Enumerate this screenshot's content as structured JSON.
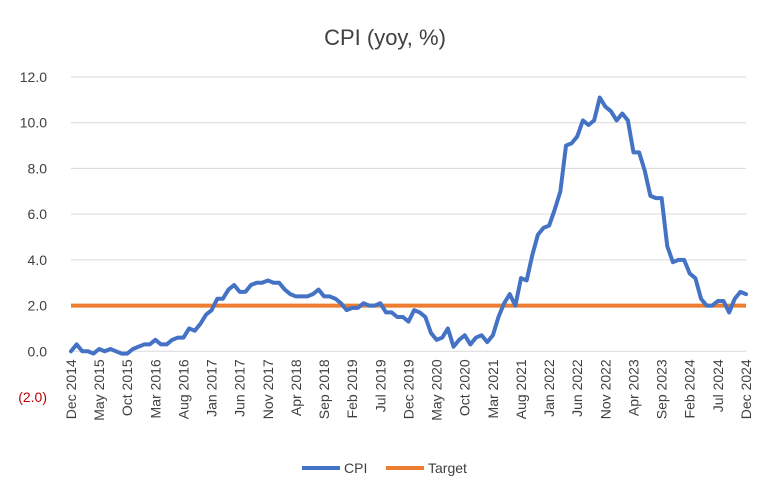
{
  "chart_data": {
    "type": "line",
    "title": "CPI (yoy, %)",
    "xlabel": "",
    "ylabel": "",
    "ylim": [
      -2,
      12
    ],
    "y_ticks": [
      {
        "value": 12,
        "label": "12.0"
      },
      {
        "value": 10,
        "label": "10.0"
      },
      {
        "value": 8,
        "label": "8.0"
      },
      {
        "value": 6,
        "label": "6.0"
      },
      {
        "value": 4,
        "label": "4.0"
      },
      {
        "value": 2,
        "label": "2.0"
      },
      {
        "value": 0,
        "label": "0.0"
      },
      {
        "value": -2,
        "label": "(2.0)"
      }
    ],
    "negative_label_color": "#c00000",
    "grid": true,
    "legend_position": "bottom",
    "x_tick_labels": [
      {
        "index": 0,
        "label": "Dec 2014"
      },
      {
        "index": 5,
        "label": "May 2015"
      },
      {
        "index": 10,
        "label": "Oct 2015"
      },
      {
        "index": 15,
        "label": "Mar 2016"
      },
      {
        "index": 20,
        "label": "Aug 2016"
      },
      {
        "index": 25,
        "label": "Jan 2017"
      },
      {
        "index": 30,
        "label": "Jun 2017"
      },
      {
        "index": 35,
        "label": "Nov 2017"
      },
      {
        "index": 40,
        "label": "Apr 2018"
      },
      {
        "index": 45,
        "label": "Sep 2018"
      },
      {
        "index": 50,
        "label": "Feb 2019"
      },
      {
        "index": 55,
        "label": "Jul 2019"
      },
      {
        "index": 60,
        "label": "Dec 2019"
      },
      {
        "index": 65,
        "label": "May 2020"
      },
      {
        "index": 70,
        "label": "Oct 2020"
      },
      {
        "index": 75,
        "label": "Mar 2021"
      },
      {
        "index": 80,
        "label": "Aug 2021"
      },
      {
        "index": 85,
        "label": "Jan 2022"
      },
      {
        "index": 90,
        "label": "Jun 2022"
      },
      {
        "index": 95,
        "label": "Nov 2022"
      },
      {
        "index": 100,
        "label": "Apr 2023"
      },
      {
        "index": 105,
        "label": "Sep 2023"
      },
      {
        "index": 110,
        "label": "Feb 2024"
      },
      {
        "index": 115,
        "label": "Jul 2024"
      },
      {
        "index": 120,
        "label": "Dec 2024"
      }
    ],
    "series": [
      {
        "name": "CPI",
        "color": "#4472c4",
        "values": [
          0.0,
          0.3,
          0.0,
          0.0,
          -0.1,
          0.1,
          0.0,
          0.1,
          0.0,
          -0.1,
          -0.1,
          0.1,
          0.2,
          0.3,
          0.3,
          0.5,
          0.3,
          0.3,
          0.5,
          0.6,
          0.6,
          1.0,
          0.9,
          1.2,
          1.6,
          1.8,
          2.3,
          2.3,
          2.7,
          2.9,
          2.6,
          2.6,
          2.9,
          3.0,
          3.0,
          3.1,
          3.0,
          3.0,
          2.7,
          2.5,
          2.4,
          2.4,
          2.4,
          2.5,
          2.7,
          2.4,
          2.4,
          2.3,
          2.1,
          1.8,
          1.9,
          1.9,
          2.1,
          2.0,
          2.0,
          2.1,
          1.7,
          1.7,
          1.5,
          1.5,
          1.3,
          1.8,
          1.7,
          1.5,
          0.8,
          0.5,
          0.6,
          1.0,
          0.2,
          0.5,
          0.7,
          0.3,
          0.6,
          0.7,
          0.4,
          0.7,
          1.5,
          2.1,
          2.5,
          2.0,
          3.2,
          3.1,
          4.2,
          5.1,
          5.4,
          5.5,
          6.2,
          7.0,
          9.0,
          9.1,
          9.4,
          10.1,
          9.9,
          10.1,
          11.1,
          10.7,
          10.5,
          10.1,
          10.4,
          10.1,
          8.7,
          8.7,
          7.9,
          6.8,
          6.7,
          6.7,
          4.6,
          3.9,
          4.0,
          4.0,
          3.4,
          3.2,
          2.3,
          2.0,
          2.0,
          2.2,
          2.2,
          1.7,
          2.3,
          2.6,
          2.5
        ]
      },
      {
        "name": "Target",
        "color": "#ed7d31",
        "constant": 2.0
      }
    ]
  }
}
